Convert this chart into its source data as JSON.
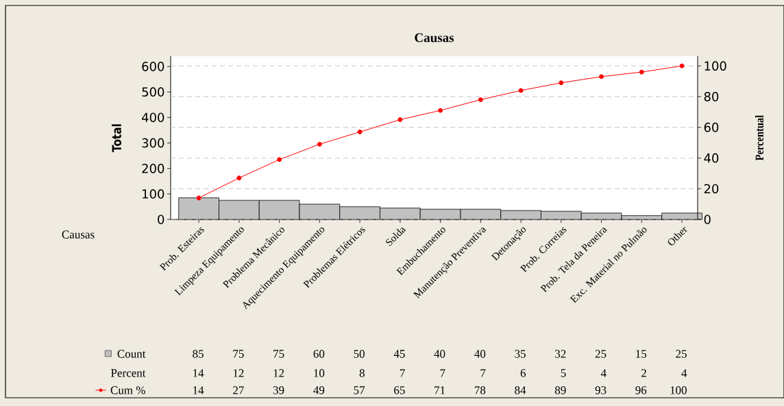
{
  "chart_data": {
    "type": "bar",
    "title": "Causas",
    "xlabel": "Causas",
    "ylabel": "Total",
    "y2label": "Percentual",
    "categories": [
      "Prob. Esteiras",
      "Limpeza Equipamento",
      "Problema Mecânico",
      "Aquecimento Equipamento",
      "Problemas Elétricos",
      "Solda",
      "Embuchamento",
      "Manutenção Preventiva",
      "Detonação",
      "Prob. Correias",
      "Prob. Tela da Peneira",
      "Exc. Material no Pulmão",
      "Other"
    ],
    "series": [
      {
        "name": "Count",
        "color": "#c0c0c0",
        "values": [
          85,
          75,
          75,
          60,
          50,
          45,
          40,
          40,
          35,
          32,
          25,
          15,
          25
        ]
      },
      {
        "name": "Cum %",
        "type": "line",
        "axis": "y2",
        "color": "#ff0000",
        "values": [
          14,
          27,
          39,
          49,
          57,
          65,
          71,
          78,
          84,
          89,
          93,
          96,
          100
        ]
      }
    ],
    "ylim": [
      0,
      640
    ],
    "yticks": [
      0,
      100,
      200,
      300,
      400,
      500,
      600
    ],
    "y2lim": [
      0,
      106.3
    ],
    "y2ticks": [
      0,
      20,
      40,
      60,
      80,
      100
    ],
    "grid": "y",
    "legend": "bottom left",
    "marker": "circle",
    "data_labels": true,
    "annotations": [
      "Percent",
      "14",
      "12",
      "12",
      "10",
      "8",
      "7",
      "7",
      "7",
      "6",
      "5",
      "4",
      "2",
      "4"
    ]
  }
}
